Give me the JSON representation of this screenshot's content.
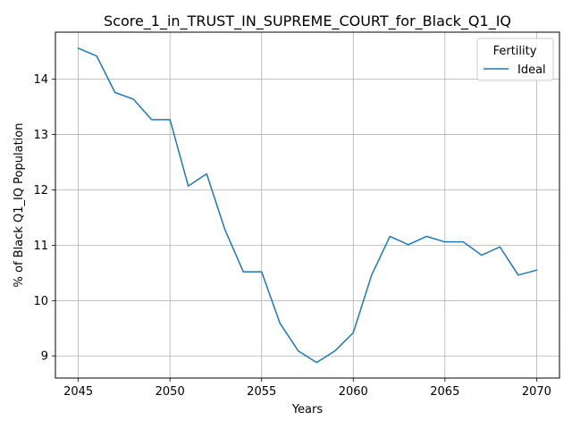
{
  "chart_data": {
    "type": "line",
    "title": "Score_1_in_TRUST_IN_SUPREME_COURT_for_Black_Q1_IQ",
    "xlabel": "Years",
    "ylabel": "% of Black Q1_IQ Population",
    "xlim": [
      2043.75,
      2071.25
    ],
    "ylim": [
      8.6,
      14.85
    ],
    "xticks": [
      2045,
      2050,
      2055,
      2060,
      2065,
      2070
    ],
    "yticks": [
      9,
      10,
      11,
      12,
      13,
      14
    ],
    "grid": true,
    "legend": {
      "title": "Fertility",
      "placement": "top-right"
    },
    "series": [
      {
        "name": "Ideal",
        "color": "#1f77b4",
        "x": [
          2045,
          2046,
          2047,
          2048,
          2049,
          2050,
          2051,
          2052,
          2053,
          2054,
          2055,
          2056,
          2057,
          2058,
          2059,
          2060,
          2061,
          2062,
          2063,
          2064,
          2065,
          2066,
          2067,
          2068,
          2069,
          2070
        ],
        "y": [
          14.56,
          14.42,
          13.76,
          13.64,
          13.27,
          13.27,
          12.07,
          12.29,
          11.28,
          10.52,
          10.52,
          9.59,
          9.09,
          8.88,
          9.09,
          9.42,
          10.46,
          11.16,
          11.01,
          11.16,
          11.06,
          11.06,
          10.82,
          10.97,
          10.46,
          10.55
        ]
      }
    ]
  }
}
